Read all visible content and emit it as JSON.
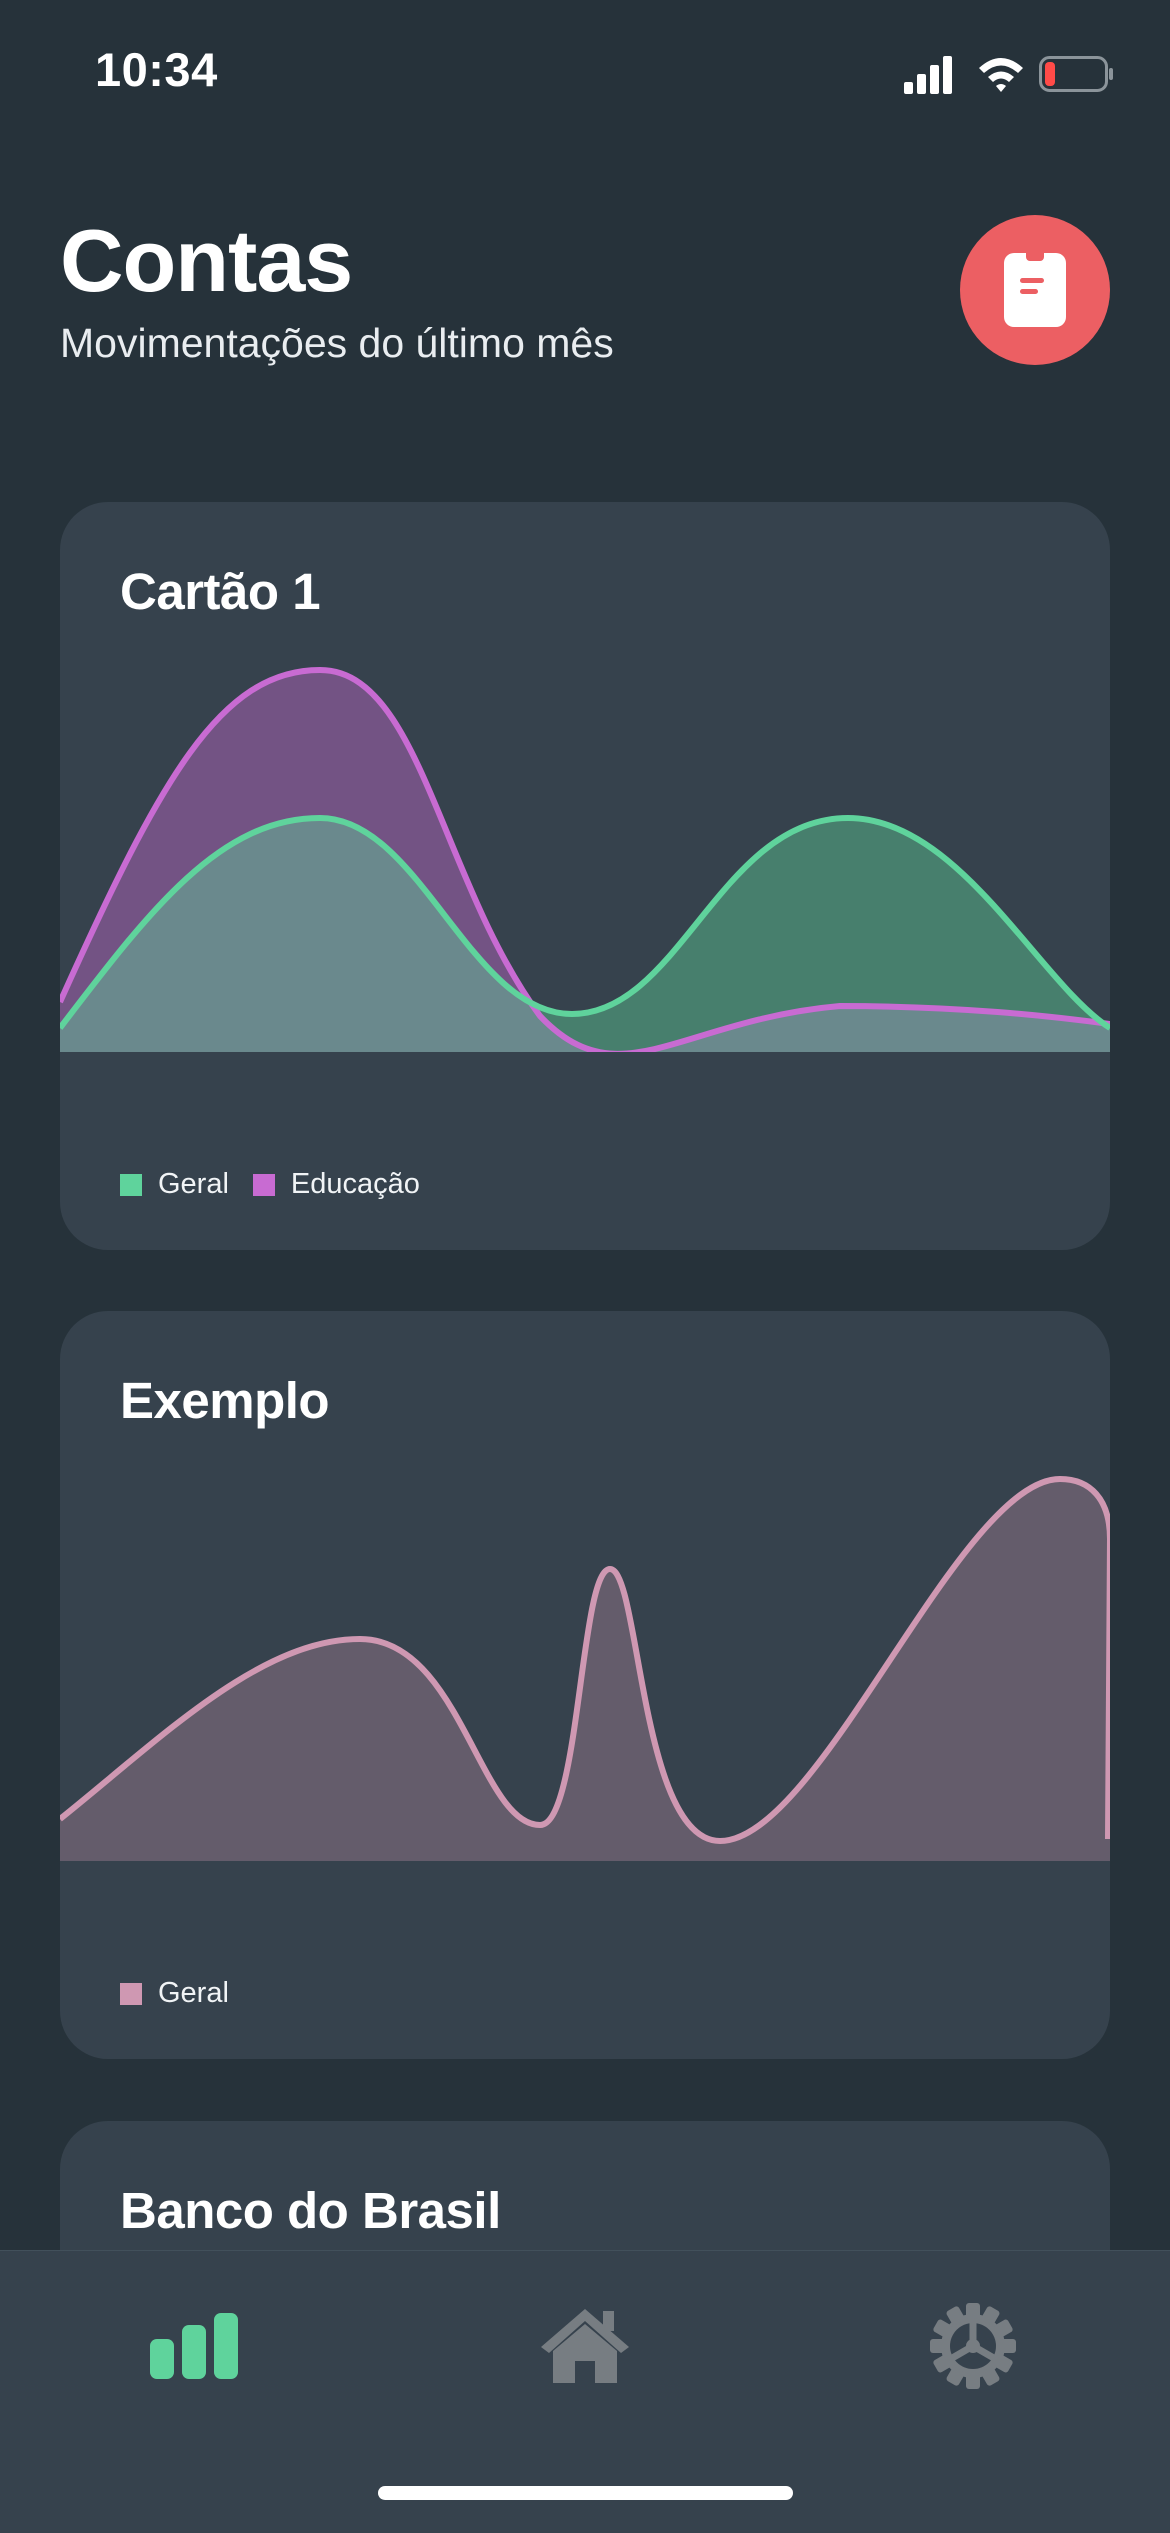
{
  "status_bar": {
    "time": "10:34"
  },
  "header": {
    "title": "Contas",
    "subtitle": "Movimentações do último mês"
  },
  "cards": [
    {
      "title": "Cartão 1",
      "chart_data": {
        "type": "area",
        "series": [
          {
            "name": "Geral",
            "color": "#5fd39c",
            "values": [
              0.15,
              1.0,
              0.15,
              1.0,
              0.15
            ]
          },
          {
            "name": "Educação",
            "color": "#c86bd2",
            "values": [
              0.25,
              1.45,
              0.05,
              0.23,
              0.15
            ]
          }
        ]
      }
    },
    {
      "title": "Exemplo",
      "chart_data": {
        "type": "area",
        "series": [
          {
            "name": "Geral",
            "color": "#cf98b2",
            "values": [
              0.12,
              0.56,
              0.12,
              0.8,
              0.1,
              1.0,
              0.85,
              0.1
            ]
          }
        ]
      }
    },
    {
      "title": "Banco do Brasil"
    }
  ],
  "tab_bar": {
    "items": [
      {
        "name": "chart-tab",
        "active": true
      },
      {
        "name": "home-tab",
        "active": false
      },
      {
        "name": "settings-tab",
        "active": false
      }
    ]
  },
  "colors": {
    "accent": "#5fd39c",
    "report_button": "#ec5f63"
  }
}
